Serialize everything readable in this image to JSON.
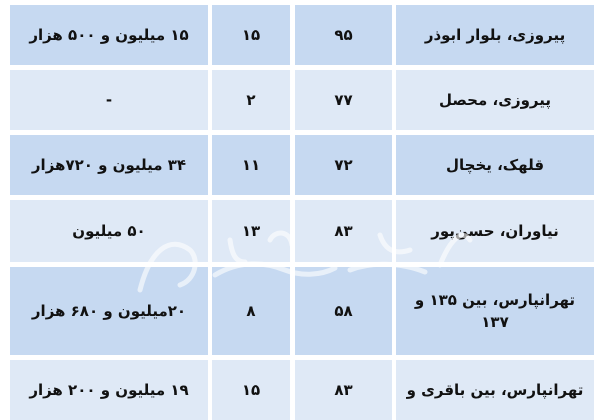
{
  "table": {
    "rows": [
      {
        "location": "پیروزی، بلوار ابوذر",
        "col_a": "۹۵",
        "col_b": "۱۵",
        "price": "۱۵ میلیون و ۵۰۰ هزار",
        "shade": "dark"
      },
      {
        "location": "پیروزی، محصل",
        "col_a": "۷۷",
        "col_b": "۲",
        "price": "-",
        "shade": "light"
      },
      {
        "location": "قلهک، یخچال",
        "col_a": "۷۲",
        "col_b": "۱۱",
        "price": "۳۴ میلیون و ۷۲۰هزار",
        "shade": "dark"
      },
      {
        "location": "نیاوران، حسن‌پور",
        "col_a": "۸۳",
        "col_b": "۱۳",
        "price": "۵۰ میلیون",
        "shade": "light"
      },
      {
        "location": "تهرانپارس، بین ۱۳۵ و ۱۳۷",
        "col_a": "۵۸",
        "col_b": "۸",
        "price": "۲۰میلیون و ۶۸۰ هزار",
        "shade": "dark"
      },
      {
        "location": "تهرانپارس، بین باقری و",
        "col_a": "۸۳",
        "col_b": "۱۵",
        "price": "۱۹ میلیون و ۲۰۰ هزار",
        "shade": "light"
      }
    ]
  },
  "watermark": "دنیای اقتصاد",
  "colors": {
    "dark_row": "#c6d9f1",
    "light_row": "#dfe9f6"
  }
}
